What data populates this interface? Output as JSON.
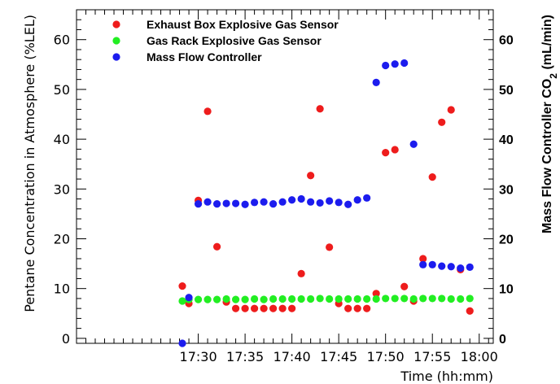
{
  "chart_data": {
    "type": "scatter",
    "title": "",
    "xlabel": "Time (hh:mm)",
    "ylabel_left": "Pentane Concentration in Atmosphere (%LEL)",
    "ylabel_right_prefix": "Mass Flow Controller CO",
    "ylabel_right_sub": "2",
    "ylabel_right_suffix": " (mL/min)",
    "x_unit": "minutes after 17:00",
    "xlim": [
      17.0,
      61.5
    ],
    "ylim_left": [
      -1,
      66
    ],
    "ylim_right": [
      -1,
      66
    ],
    "x_ticks": [
      {
        "value": 30,
        "label": "17:30"
      },
      {
        "value": 35,
        "label": "17:35"
      },
      {
        "value": 40,
        "label": "17:40"
      },
      {
        "value": 45,
        "label": "17:45"
      },
      {
        "value": 50,
        "label": "17:50"
      },
      {
        "value": 55,
        "label": "17:55"
      },
      {
        "value": 60,
        "label": "18:00"
      }
    ],
    "y_ticks": [
      0,
      10,
      20,
      30,
      40,
      50,
      60
    ],
    "legend_position": "top-left",
    "grid": false,
    "series": [
      {
        "name": "Exhaust Box Explosive Gas Sensor",
        "color": "#ee1c1c",
        "axis": "left",
        "points": [
          [
            28.3,
            10.5
          ],
          [
            29.0,
            7.0
          ],
          [
            30.0,
            27.7
          ],
          [
            31.0,
            45.6
          ],
          [
            32.0,
            18.4
          ],
          [
            33.0,
            7.3
          ],
          [
            34.0,
            6.0
          ],
          [
            35.0,
            6.0
          ],
          [
            36.0,
            6.0
          ],
          [
            37.0,
            6.0
          ],
          [
            38.0,
            6.0
          ],
          [
            39.0,
            6.0
          ],
          [
            40.0,
            6.0
          ],
          [
            41.0,
            13.0
          ],
          [
            42.0,
            32.7
          ],
          [
            43.0,
            46.1
          ],
          [
            44.0,
            18.3
          ],
          [
            45.0,
            7.0
          ],
          [
            46.0,
            6.0
          ],
          [
            47.0,
            6.0
          ],
          [
            48.0,
            6.0
          ],
          [
            49.0,
            9.0
          ],
          [
            50.0,
            37.3
          ],
          [
            51.0,
            37.9
          ],
          [
            52.0,
            10.4
          ],
          [
            53.0,
            7.5
          ],
          [
            54.0,
            16.0
          ],
          [
            55.0,
            32.4
          ],
          [
            56.0,
            43.4
          ],
          [
            57.0,
            45.9
          ],
          [
            58.0,
            13.8
          ],
          [
            59.0,
            5.5
          ]
        ]
      },
      {
        "name": "Gas Rack Explosive Gas Sensor",
        "color": "#22ee22",
        "axis": "left",
        "points": [
          [
            28.3,
            7.5
          ],
          [
            29.0,
            7.8
          ],
          [
            30.0,
            7.8
          ],
          [
            31.0,
            7.8
          ],
          [
            32.0,
            7.8
          ],
          [
            33.0,
            7.9
          ],
          [
            34.0,
            7.8
          ],
          [
            35.0,
            7.8
          ],
          [
            36.0,
            7.9
          ],
          [
            37.0,
            7.8
          ],
          [
            38.0,
            7.9
          ],
          [
            39.0,
            7.9
          ],
          [
            40.0,
            7.9
          ],
          [
            41.0,
            7.9
          ],
          [
            42.0,
            7.9
          ],
          [
            43.0,
            8.0
          ],
          [
            44.0,
            7.9
          ],
          [
            45.0,
            7.9
          ],
          [
            46.0,
            7.9
          ],
          [
            47.0,
            7.9
          ],
          [
            48.0,
            7.9
          ],
          [
            49.0,
            7.9
          ],
          [
            50.0,
            8.0
          ],
          [
            51.0,
            8.0
          ],
          [
            52.0,
            8.0
          ],
          [
            53.0,
            7.9
          ],
          [
            54.0,
            8.0
          ],
          [
            55.0,
            8.0
          ],
          [
            56.0,
            8.0
          ],
          [
            57.0,
            7.9
          ],
          [
            58.0,
            7.9
          ],
          [
            59.0,
            8.0
          ]
        ]
      },
      {
        "name": "Mass Flow Controller",
        "color": "#1c1cee",
        "axis": "right",
        "points": [
          [
            28.3,
            -1.0
          ],
          [
            29.0,
            8.2
          ],
          [
            30.0,
            27.0
          ],
          [
            31.0,
            27.4
          ],
          [
            32.0,
            27.0
          ],
          [
            33.0,
            27.1
          ],
          [
            34.0,
            27.1
          ],
          [
            35.0,
            26.9
          ],
          [
            36.0,
            27.3
          ],
          [
            37.0,
            27.4
          ],
          [
            38.0,
            27.0
          ],
          [
            39.0,
            27.4
          ],
          [
            40.0,
            27.8
          ],
          [
            41.0,
            28.0
          ],
          [
            42.0,
            27.4
          ],
          [
            43.0,
            27.2
          ],
          [
            44.0,
            27.6
          ],
          [
            45.0,
            27.3
          ],
          [
            46.0,
            26.9
          ],
          [
            47.0,
            27.8
          ],
          [
            48.0,
            28.2
          ],
          [
            49.0,
            51.4
          ],
          [
            50.0,
            54.8
          ],
          [
            51.0,
            55.1
          ],
          [
            52.0,
            55.3
          ],
          [
            53.0,
            39.0
          ],
          [
            54.0,
            14.8
          ],
          [
            55.0,
            14.8
          ],
          [
            56.0,
            14.5
          ],
          [
            57.0,
            14.4
          ],
          [
            58.0,
            14.1
          ],
          [
            59.0,
            14.3
          ]
        ]
      }
    ]
  }
}
